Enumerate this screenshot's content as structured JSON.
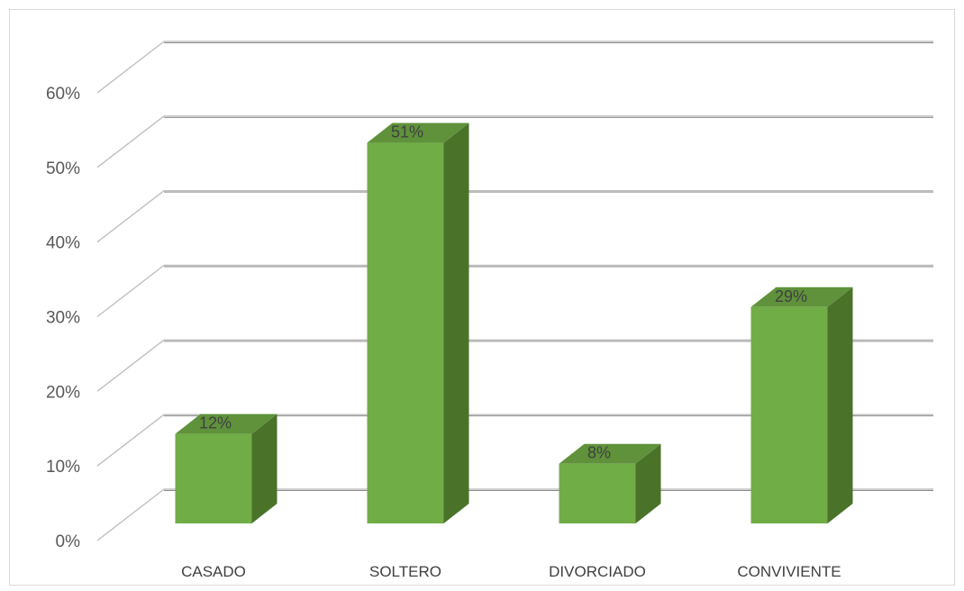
{
  "chart_data": {
    "type": "bar",
    "style": "3d-column",
    "categories": [
      "CASADO",
      "SOLTERO",
      "DIVORCIADO",
      "CONVIVIENTE"
    ],
    "values": [
      0.12,
      0.51,
      0.08,
      0.29
    ],
    "data_labels": [
      "12%",
      "51%",
      "8%",
      "29%"
    ],
    "ylim": [
      0,
      0.6
    ],
    "yticks": [
      {
        "value": 0.0,
        "label": "0%"
      },
      {
        "value": 0.1,
        "label": "10%"
      },
      {
        "value": 0.2,
        "label": "20%"
      },
      {
        "value": 0.3,
        "label": "30%"
      },
      {
        "value": 0.4,
        "label": "40%"
      },
      {
        "value": 0.5,
        "label": "50%"
      },
      {
        "value": 0.6,
        "label": "60%"
      }
    ],
    "grid": true,
    "legend": "none",
    "title": "",
    "xlabel": "",
    "ylabel": "",
    "colors": {
      "bar_front": "#70ad47",
      "bar_side": "#4a7229",
      "bar_top": "#5f923b",
      "gridline": "#bfbfbf",
      "gridline_shadow": "#8c8c8c"
    }
  }
}
